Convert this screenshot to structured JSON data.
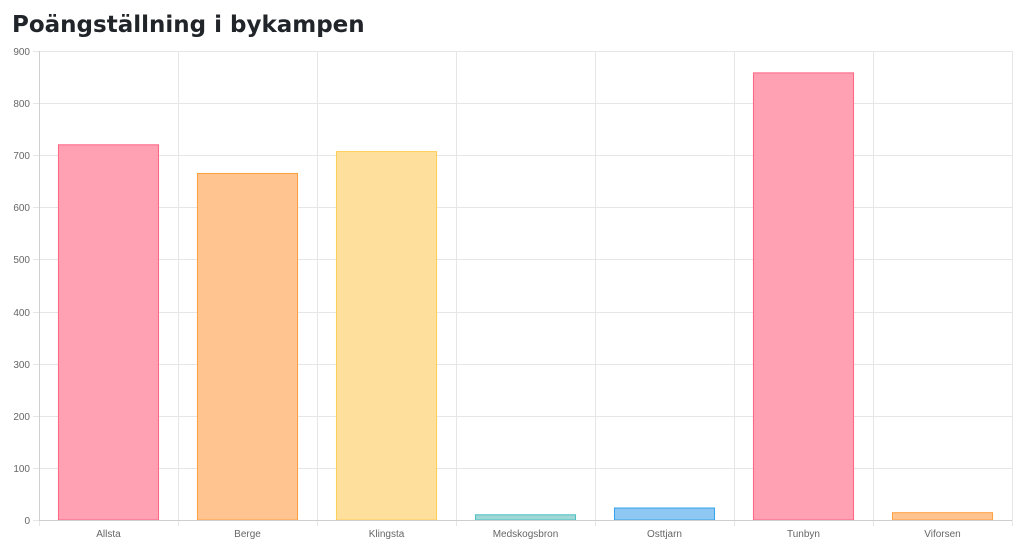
{
  "page": {
    "title": "Poängställning i bykampen"
  },
  "chart_data": {
    "type": "bar",
    "title": "",
    "xlabel": "",
    "ylabel": "",
    "categories": [
      "Allsta",
      "Berge",
      "Klingsta",
      "Medskogsbron",
      "Osttjarn",
      "Tunbyn",
      "Viforsen"
    ],
    "values": [
      720,
      665,
      707,
      10,
      23,
      858,
      14
    ],
    "ylim": [
      0,
      900
    ],
    "yticks": [
      0,
      100,
      200,
      300,
      400,
      500,
      600,
      700,
      800,
      900
    ],
    "grid": true,
    "legend": "none",
    "bar_fill_colors": [
      "#ffa0b3",
      "#ffc48f",
      "#ffdf9c",
      "#a0d7d7",
      "#8ec8f2",
      "#ffa0b3",
      "#ffc48f"
    ],
    "bar_border_colors": [
      "#ff6384",
      "#ff9f40",
      "#ffcd56",
      "#4bc0c0",
      "#36a2eb",
      "#ff6384",
      "#ff9f40"
    ]
  }
}
